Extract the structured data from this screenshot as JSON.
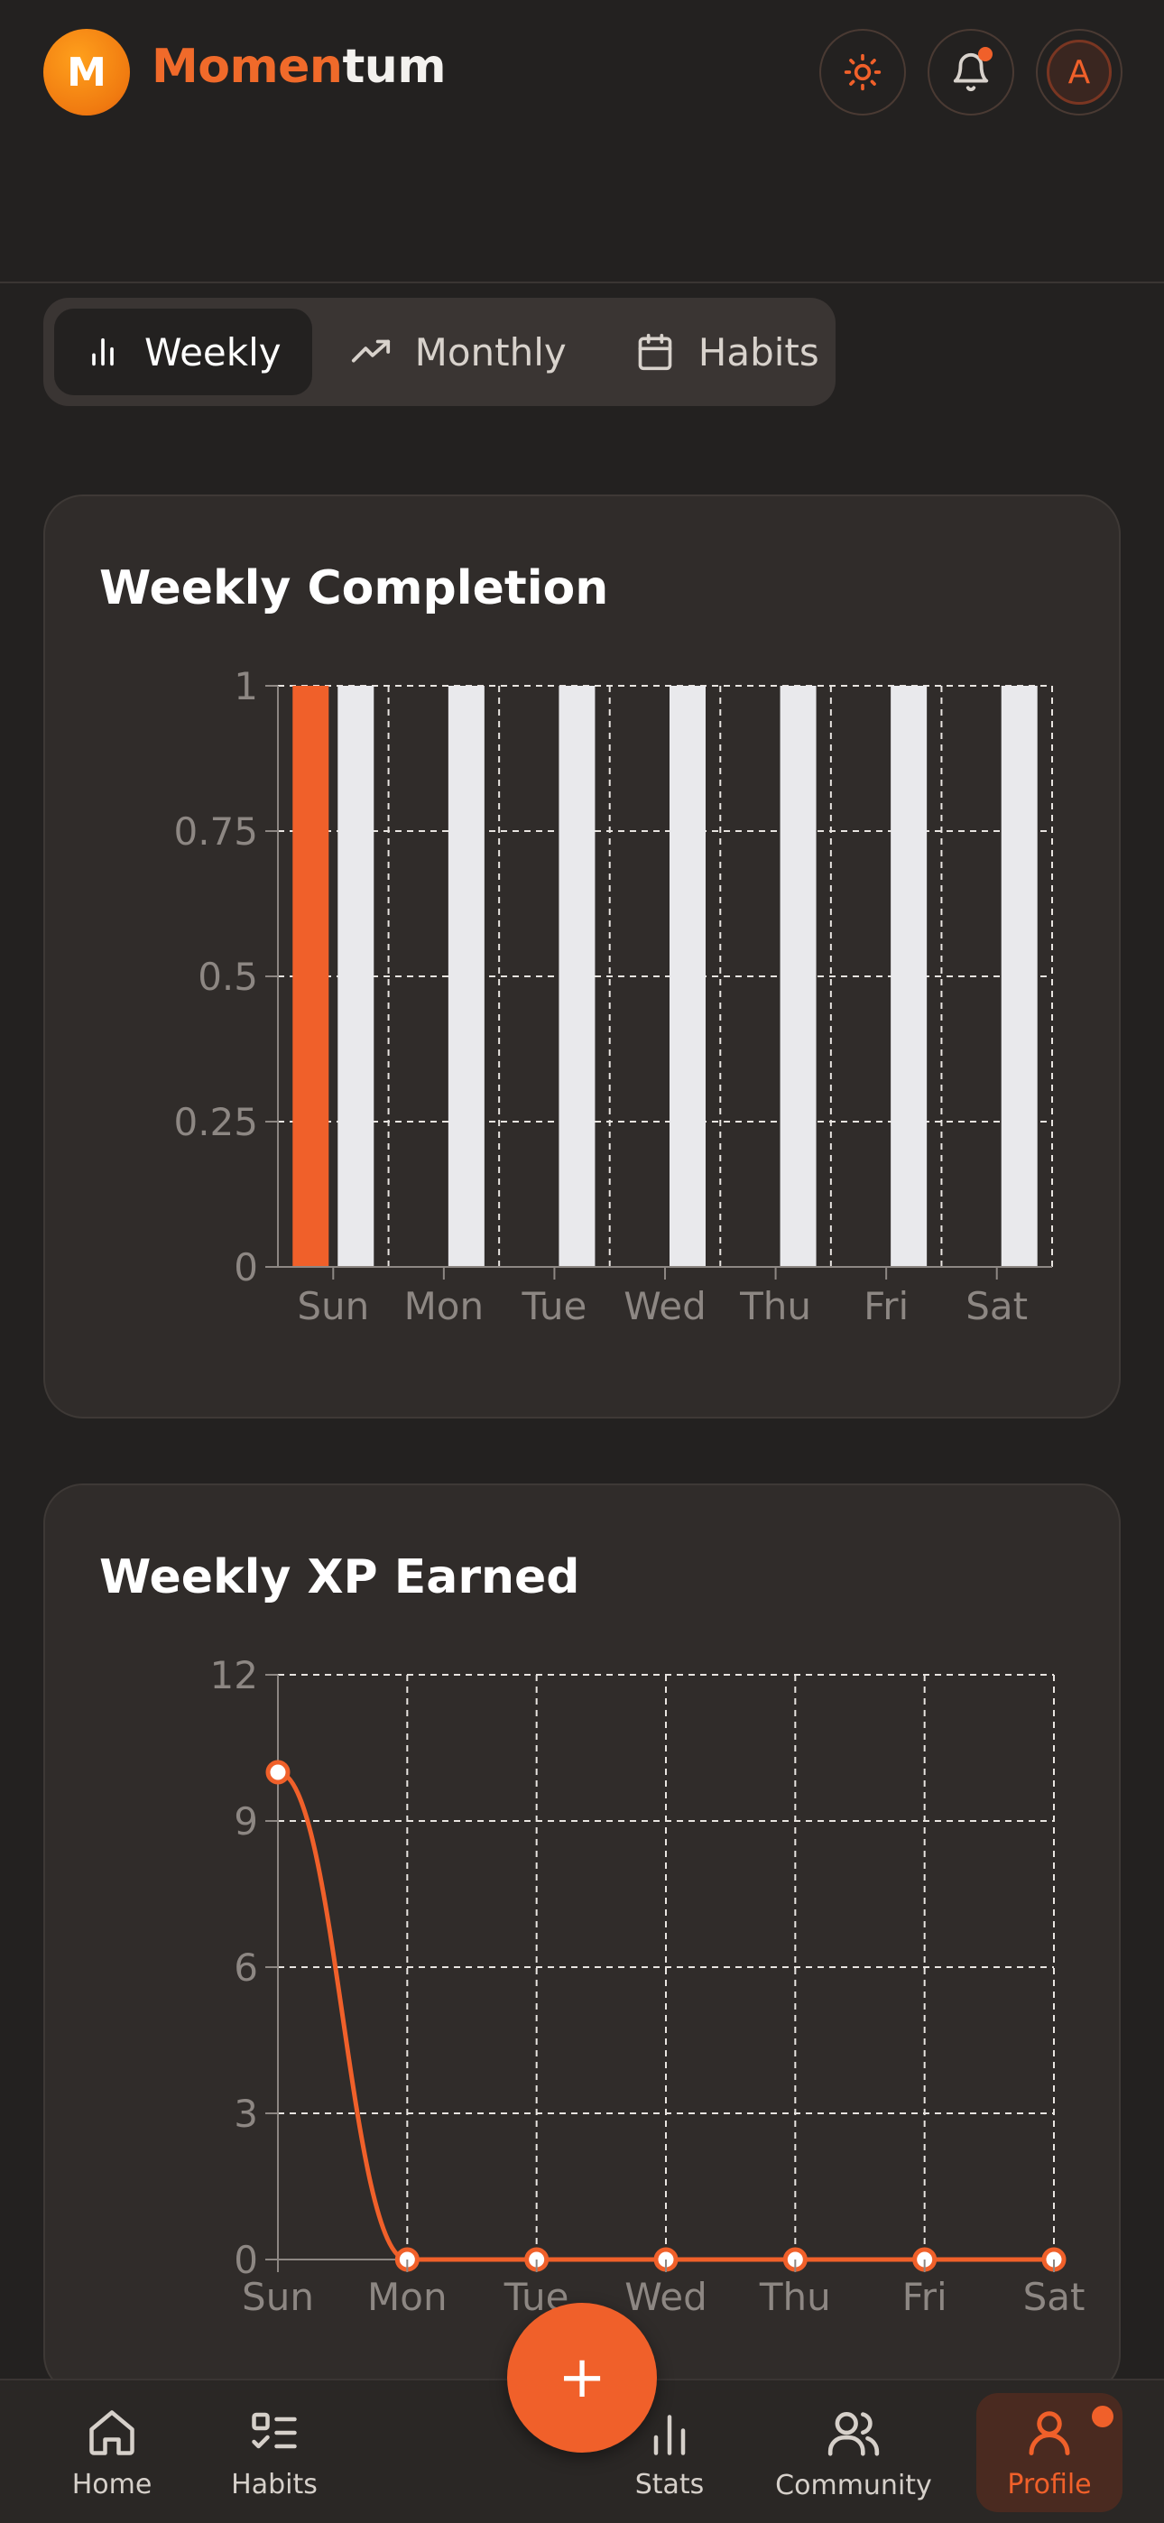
{
  "header": {
    "logo_letter": "M",
    "brand_part1": "Momen",
    "brand_part2": "tum",
    "avatar_letter": "A"
  },
  "tabs": [
    {
      "label": "Weekly",
      "icon": "bar-chart-icon",
      "active": true
    },
    {
      "label": "Monthly",
      "icon": "trending-up-icon",
      "active": false
    },
    {
      "label": "Habits",
      "icon": "calendar-icon",
      "active": false
    }
  ],
  "colors": {
    "accent": "#f0602a",
    "background": "#232120",
    "card": "#302c2a",
    "bar_light": "#e9e9ec"
  },
  "chart_data": [
    {
      "type": "bar",
      "title": "Weekly Completion",
      "categories": [
        "Sun",
        "Mon",
        "Tue",
        "Wed",
        "Thu",
        "Fri",
        "Sat"
      ],
      "series": [
        {
          "color": "#f0602a",
          "values": [
            1,
            0,
            0,
            0,
            0,
            0,
            0
          ]
        },
        {
          "color": "#e9e9ec",
          "values": [
            1,
            1,
            1,
            1,
            1,
            1,
            1
          ]
        }
      ],
      "ylim": [
        0,
        1
      ],
      "yticks": [
        "0",
        "0.25",
        "0.5",
        "0.75",
        "1"
      ],
      "grid": true
    },
    {
      "type": "line",
      "title": "Weekly XP Earned",
      "categories": [
        "Sun",
        "Mon",
        "Tue",
        "Wed",
        "Thu",
        "Fri",
        "Sat"
      ],
      "values": [
        10,
        0,
        0,
        0,
        0,
        0,
        0
      ],
      "ylim": [
        0,
        12
      ],
      "yticks": [
        "0",
        "3",
        "6",
        "9",
        "12"
      ],
      "grid": true
    }
  ],
  "fab": {
    "label": "+"
  },
  "bottom_nav": [
    {
      "label": "Home",
      "icon": "home-icon",
      "active": false
    },
    {
      "label": "Habits",
      "icon": "habits-list-icon",
      "active": false
    },
    {
      "label": "Stats",
      "icon": "stats-icon",
      "active": false
    },
    {
      "label": "Community",
      "icon": "users-icon",
      "active": false
    },
    {
      "label": "Profile",
      "icon": "user-icon",
      "active": true
    }
  ]
}
